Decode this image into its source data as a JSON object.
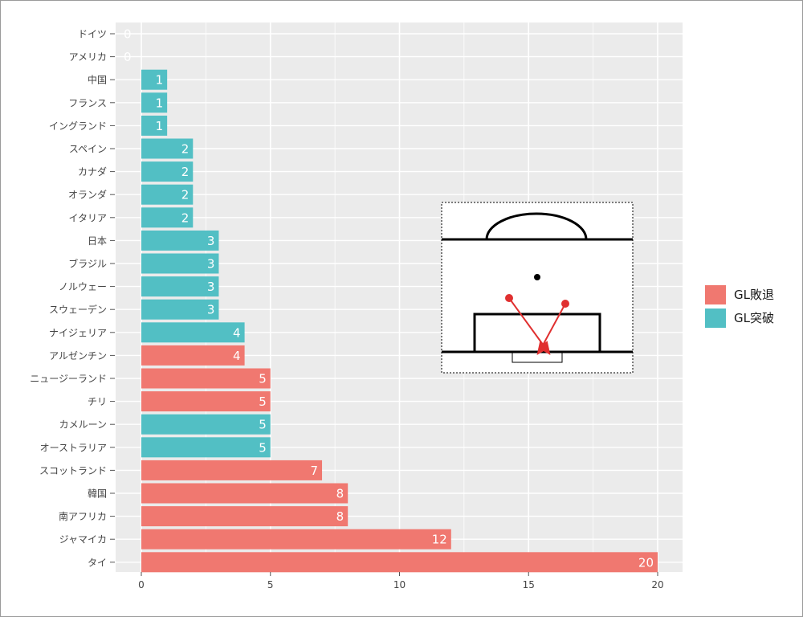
{
  "colors": {
    "panel": "#ebebeb",
    "grid": "#ffffff",
    "tick_text": "#444444",
    "bar_text": "#ffffff",
    "arrow": "#e03030"
  },
  "legend": {
    "items": [
      {
        "label": "GL敗退",
        "color": "#f07870"
      },
      {
        "label": "GL突破",
        "color": "#52bfc4"
      }
    ]
  },
  "chart_data": {
    "type": "bar",
    "orientation": "horizontal",
    "title": "",
    "xlabel": "",
    "ylabel": "",
    "xlim": [
      0,
      20
    ],
    "x_ticks": [
      0,
      5,
      10,
      15,
      20
    ],
    "grid": true,
    "legend_position": "right",
    "categories": [
      "ドイツ",
      "アメリカ",
      "中国",
      "フランス",
      "イングランド",
      "スペイン",
      "カナダ",
      "オランダ",
      "イタリア",
      "日本",
      "ブラジル",
      "ノルウェー",
      "スウェーデン",
      "ナイジェリア",
      "アルゼンチン",
      "ニュージーランド",
      "チリ",
      "カメルーン",
      "オーストラリア",
      "スコットランド",
      "韓国",
      "南アフリカ",
      "ジャマイカ",
      "タイ"
    ],
    "values": [
      0,
      0,
      1,
      1,
      1,
      2,
      2,
      2,
      2,
      3,
      3,
      3,
      3,
      4,
      4,
      5,
      5,
      5,
      5,
      7,
      8,
      8,
      12,
      20
    ],
    "groups": [
      "GL突破",
      "GL突破",
      "GL突破",
      "GL突破",
      "GL突破",
      "GL突破",
      "GL突破",
      "GL突破",
      "GL突破",
      "GL突破",
      "GL突破",
      "GL突破",
      "GL突破",
      "GL突破",
      "GL敗退",
      "GL敗退",
      "GL敗退",
      "GL突破",
      "GL突破",
      "GL敗退",
      "GL敗退",
      "GL敗退",
      "GL敗退",
      "GL敗退"
    ],
    "inset": "soccer-penalty-area-diagram"
  }
}
